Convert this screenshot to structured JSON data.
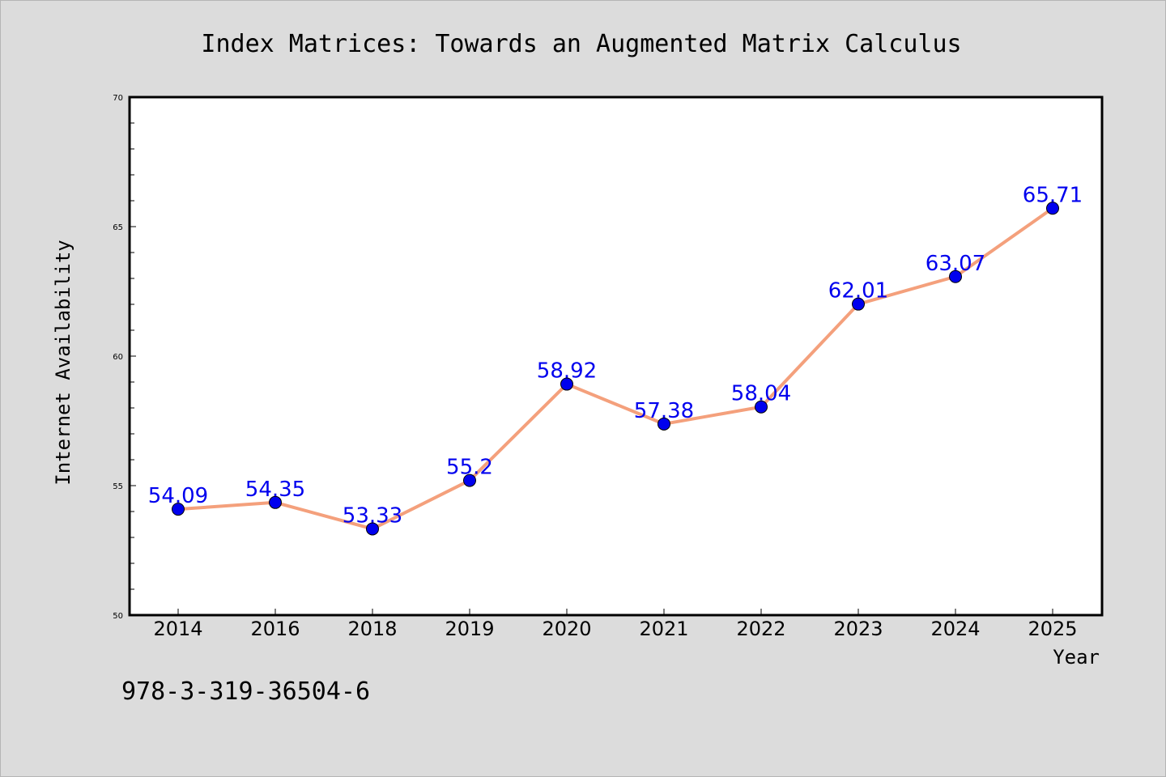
{
  "chart_data": {
    "type": "line",
    "title": "Index Matrices: Towards an Augmented Matrix Calculus",
    "xlabel": "Year",
    "ylabel": "Internet Availability",
    "categories": [
      "2014",
      "2016",
      "2018",
      "2019",
      "2020",
      "2021",
      "2022",
      "2023",
      "2024",
      "2025"
    ],
    "series": [
      {
        "values": [
          54.09,
          54.35,
          53.33,
          55.2,
          58.92,
          57.38,
          58.04,
          62.01,
          63.07,
          65.71
        ]
      }
    ],
    "data_labels": [
      "54.09",
      "54.35",
      "53.33",
      "55.2",
      "58.92",
      "57.38",
      "58.04",
      "62.01",
      "63.07",
      "65.71"
    ],
    "ylim": [
      50,
      70
    ],
    "yticks": [
      50,
      55,
      60,
      65,
      70
    ],
    "grid": false,
    "line_color": "#f4a07c",
    "marker_color": "#0000ee",
    "label_color": "#0000ee",
    "background_color": "#dcdcdc",
    "plot_background_color": "#ffffff"
  },
  "footer": {
    "text": "978-3-319-36504-6"
  }
}
